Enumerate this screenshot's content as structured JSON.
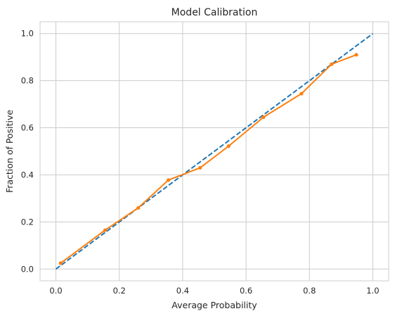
{
  "chart_data": {
    "type": "line",
    "title": "Model Calibration",
    "xlabel": "Average Probability",
    "ylabel": "Fraction of Positive",
    "xlim": [
      -0.05,
      1.05
    ],
    "ylim": [
      -0.05,
      1.05
    ],
    "xticks": [
      0.0,
      0.2,
      0.4,
      0.6,
      0.8,
      1.0
    ],
    "yticks": [
      0.0,
      0.2,
      0.4,
      0.6,
      0.8,
      1.0
    ],
    "tick_labels_x": [
      "0.0",
      "0.2",
      "0.4",
      "0.6",
      "0.8",
      "1.0"
    ],
    "tick_labels_y": [
      "0.0",
      "0.2",
      "0.4",
      "0.6",
      "0.8",
      "1.0"
    ],
    "grid": true,
    "legend": "none",
    "series": [
      {
        "style": "dashed",
        "color": "#1f77b4",
        "markers": false,
        "x": [
          0.0,
          1.0
        ],
        "y": [
          0.0,
          1.0
        ]
      },
      {
        "style": "solid",
        "color": "#ff7f0e",
        "markers": true,
        "x": [
          0.015,
          0.155,
          0.26,
          0.355,
          0.455,
          0.545,
          0.655,
          0.775,
          0.87,
          0.948
        ],
        "y": [
          0.025,
          0.165,
          0.26,
          0.378,
          0.43,
          0.522,
          0.645,
          0.745,
          0.87,
          0.91
        ]
      }
    ]
  }
}
